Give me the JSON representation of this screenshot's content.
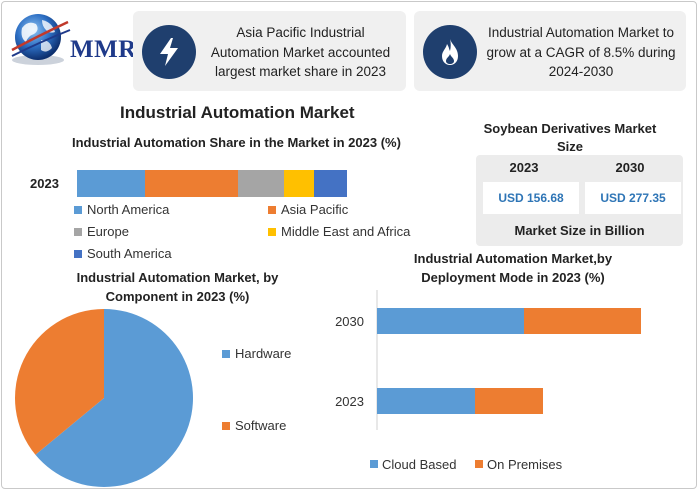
{
  "brand": {
    "logo_text": "MMR"
  },
  "info_boxes": [
    {
      "icon": "lightning-bolt-icon",
      "text": "Asia Pacific Industrial Automation Market accounted largest market share in 2023"
    },
    {
      "icon": "flame-icon",
      "text": "Industrial Automation Market to grow at a CAGR of 8.5% during 2024-2030"
    }
  ],
  "main_title": "Industrial Automation Market",
  "soybean": {
    "title": "Soybean Derivatives Market Size",
    "years": [
      "2023",
      "2030"
    ],
    "values": [
      "USD 156.68",
      "USD 277.35"
    ],
    "footer": "Market Size in Billion"
  },
  "colors": {
    "blue": "#5b9bd5",
    "orange": "#ed7d31",
    "gray": "#a5a5a5",
    "yellow": "#ffc000",
    "dark_blue": "#4472c4",
    "icon_bg": "#1f3f6e"
  },
  "chart_data": [
    {
      "type": "bar",
      "orientation": "horizontal-stacked",
      "title": "Industrial Automation Share in the Market in 2023 (%)",
      "categories": [
        "2023"
      ],
      "series": [
        {
          "name": "North America",
          "values": [
            25
          ]
        },
        {
          "name": "Asia Pacific",
          "values": [
            34
          ]
        },
        {
          "name": "Europe",
          "values": [
            17
          ]
        },
        {
          "name": "Middle East and Africa",
          "values": [
            11
          ]
        },
        {
          "name": "South America",
          "values": [
            12
          ]
        }
      ],
      "legend": "bottom"
    },
    {
      "type": "pie",
      "title": "Industrial Automation Market, by Component in 2023 (%)",
      "labels": [
        "Hardware",
        "Software"
      ],
      "values": [
        64,
        36
      ],
      "legend": "right"
    },
    {
      "type": "bar",
      "orientation": "horizontal-stacked",
      "title": "Industrial Automation Market,by Deployment Mode in 2023 (%)",
      "categories": [
        "2030",
        "2023"
      ],
      "series": [
        {
          "name": "Cloud Based",
          "values": [
            147,
            98
          ]
        },
        {
          "name": "On Premises",
          "values": [
            117,
            68
          ]
        }
      ],
      "legend": "bottom"
    }
  ]
}
